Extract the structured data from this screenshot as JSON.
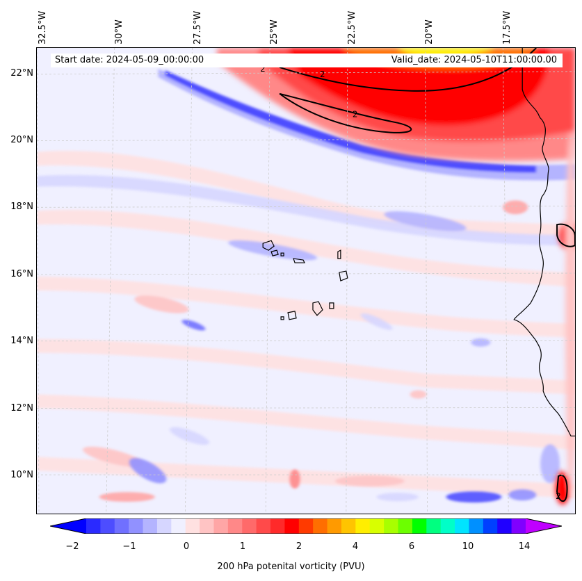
{
  "map": {
    "start_label": "Start date: 2024-05-09_00:00:00",
    "valid_label": "Valid_date: 2024-05-10T11:00:00.00",
    "lon_labels": [
      "32.5°W",
      "30°W",
      "27.5°W",
      "25°W",
      "22.5°W",
      "20°W",
      "17.5°W"
    ],
    "lat_labels": [
      "22°N",
      "20°N",
      "18°N",
      "16°N",
      "14°N",
      "12°N",
      "10°N"
    ],
    "contour_value": "2"
  },
  "colorbar": {
    "label": "200 hPa potenital vorticity (PVU)",
    "tick_labels": [
      "−2",
      "−1",
      "0",
      "1",
      "2",
      "4",
      "6",
      "10",
      "14"
    ],
    "colors": [
      "#0000ff",
      "#2a2aff",
      "#4d4dff",
      "#7070ff",
      "#9191ff",
      "#b4b4ff",
      "#d6d6ff",
      "#f0f0ff",
      "#ffe1e1",
      "#ffc4c4",
      "#ffa6a6",
      "#ff8888",
      "#ff6a6a",
      "#ff4a4a",
      "#ff2a2a",
      "#ff0000",
      "#ff3a00",
      "#ff6e00",
      "#ff9a00",
      "#ffc400",
      "#ffee00",
      "#d8ff00",
      "#a8ff00",
      "#6cff00",
      "#00ff00",
      "#00ff80",
      "#00ffc8",
      "#00e4ff",
      "#0090ff",
      "#0040ff",
      "#2000ff",
      "#8000ff",
      "#c000ff"
    ]
  }
}
